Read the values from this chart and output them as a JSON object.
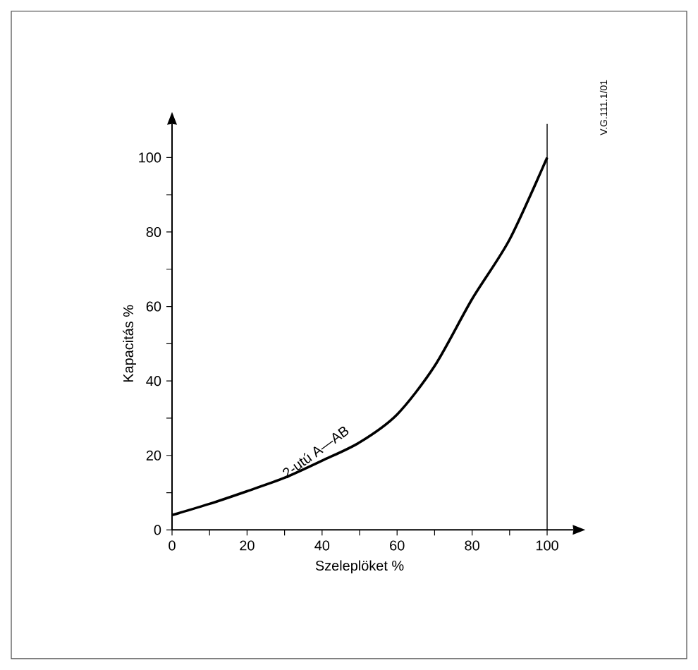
{
  "chart_data": {
    "type": "line",
    "xlabel": "Szeleplöket %",
    "ylabel": "Kapacitás %",
    "x": [
      0,
      10,
      20,
      30,
      40,
      50,
      60,
      70,
      80,
      90,
      100
    ],
    "series": [
      {
        "name": "2-utú  A—AB",
        "color": "#000000",
        "values": [
          4,
          7,
          10.4,
          14,
          18.6,
          23.5,
          31,
          44,
          62,
          78,
          100
        ]
      }
    ],
    "xlim": [
      0,
      107
    ],
    "ylim": [
      0,
      109
    ],
    "xticks": [
      0,
      {
        "value": 10,
        "label": null
      },
      20,
      {
        "value": 30,
        "label": null
      },
      40,
      {
        "value": 50,
        "label": null
      },
      60,
      {
        "value": 70,
        "label": null
      },
      80,
      {
        "value": 90,
        "label": null
      },
      100
    ],
    "yticks": [
      0,
      {
        "value": 10,
        "label": null
      },
      20,
      {
        "value": 30,
        "label": null
      },
      40,
      {
        "value": 50,
        "label": null
      },
      60,
      {
        "value": 70,
        "label": null
      },
      80,
      {
        "value": 90,
        "label": null
      },
      100
    ],
    "ref_lines": [
      {
        "axis": "x",
        "value": 100,
        "color": "#000000"
      }
    ],
    "annotations": [
      "V.G.111.1/01"
    ]
  }
}
